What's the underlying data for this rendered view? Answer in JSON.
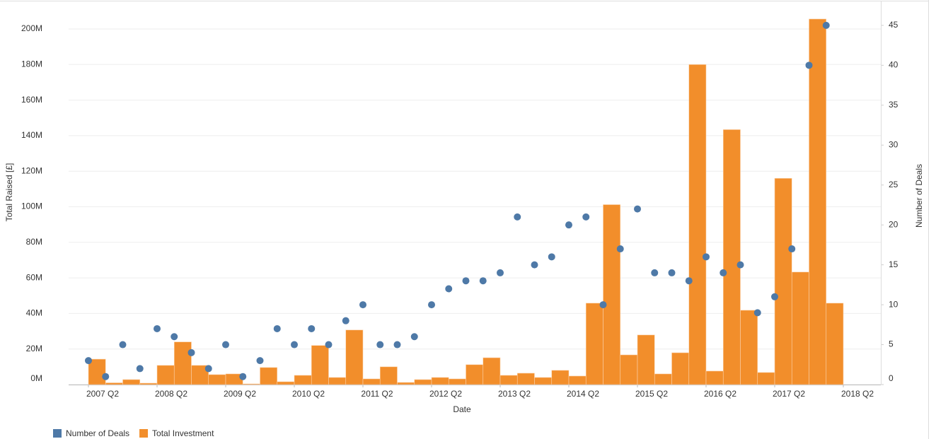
{
  "chart_data": {
    "type": "combo",
    "x_label": "Date",
    "y_label": "Total Raised [£]",
    "y2_label": "Number of Deals",
    "categories": [
      "2007 Q2",
      null,
      null,
      null,
      "2008 Q2",
      null,
      null,
      null,
      "2009 Q2",
      null,
      null,
      null,
      "2010 Q2",
      null,
      null,
      null,
      "2011 Q2",
      null,
      null,
      null,
      "2012 Q2",
      null,
      null,
      null,
      "2013 Q2",
      null,
      null,
      null,
      "2014 Q2",
      null,
      null,
      null,
      "2015 Q2",
      null,
      null,
      null,
      "2016 Q2",
      null,
      null,
      null,
      "2017 Q2",
      null,
      null,
      null,
      "2018 Q2"
    ],
    "series": [
      {
        "name": "Number of Deals",
        "type": "scatter",
        "axis": "y2",
        "color": "#4e79a7",
        "values": [
          3,
          1,
          5,
          2,
          7,
          6,
          4,
          2,
          5,
          1,
          3,
          7,
          5,
          7,
          5,
          8,
          10,
          5,
          5,
          6,
          10,
          12,
          13,
          13,
          14,
          21,
          15,
          16,
          20,
          21,
          10,
          17,
          22,
          14,
          14,
          13,
          16,
          14,
          15,
          9,
          11,
          17,
          40,
          45,
          null
        ]
      },
      {
        "name": "Total Investment",
        "type": "bar",
        "color": "#f28e2b",
        "values": [
          14300000,
          1000000,
          2800000,
          800000,
          10800000,
          24000000,
          10800000,
          5600000,
          6000000,
          400000,
          9600000,
          1600000,
          5200000,
          22000000,
          4000000,
          30700000,
          3200000,
          10000000,
          1200000,
          2800000,
          4000000,
          3200000,
          11200000,
          15100000,
          5200000,
          6400000,
          4000000,
          8000000,
          4800000,
          45800000,
          101200000,
          16700000,
          27900000,
          6000000,
          17900000,
          180000000,
          7600000,
          143400000,
          41800000,
          6800000,
          116000000,
          63300000,
          205600000,
          45800000,
          null
        ]
      }
    ],
    "ylim": [
      0,
      215500000
    ],
    "yticks": [
      {
        "value": 0,
        "label": "0M"
      },
      {
        "value": 20000000,
        "label": "20M"
      },
      {
        "value": 40000000,
        "label": "40M"
      },
      {
        "value": 60000000,
        "label": "60M"
      },
      {
        "value": 80000000,
        "label": "80M"
      },
      {
        "value": 100000000,
        "label": "100M"
      },
      {
        "value": 120000000,
        "label": "120M"
      },
      {
        "value": 140000000,
        "label": "140M"
      },
      {
        "value": 160000000,
        "label": "160M"
      },
      {
        "value": 180000000,
        "label": "180M"
      },
      {
        "value": 200000000,
        "label": "200M"
      }
    ],
    "y2lim": [
      0,
      48
    ],
    "y2ticks": [
      0,
      5,
      10,
      15,
      20,
      25,
      30,
      35,
      40,
      45
    ],
    "grid": true,
    "legend": "bottom-left"
  }
}
